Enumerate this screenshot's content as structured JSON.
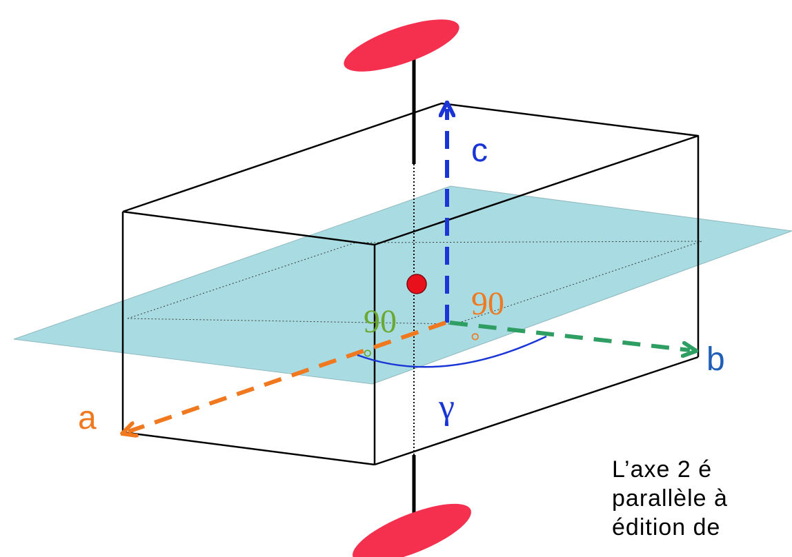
{
  "labels": {
    "axis_a": "a",
    "axis_b": "b",
    "axis_c": "c",
    "gamma": "γ",
    "angle_green": "90",
    "angle_orange": "90",
    "degree_mark": "°"
  },
  "caption": {
    "line1": "L’axe 2 é",
    "line2": "parallèle à",
    "line3": "édition de"
  },
  "colors": {
    "axis_a": "#f0781e",
    "axis_b": "#2e9e62",
    "axis_c": "#1a35d6",
    "label_b": "#1f5fb8",
    "label_c": "#1a35d6",
    "gamma": "#1a35d6",
    "angle_green": "#6aa832",
    "angle_orange": "#f0781e",
    "mirror_plane": "#a8dce2",
    "rotation_axis_ends": "#f5304f",
    "center_point": "#e8101a"
  }
}
